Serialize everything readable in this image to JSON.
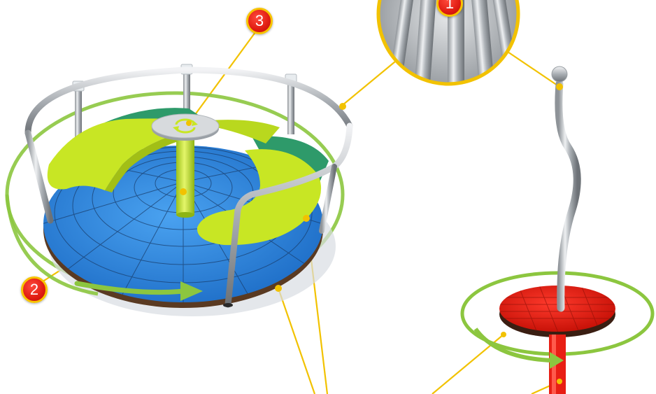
{
  "callouts": {
    "badge_1": "1",
    "badge_2": "2",
    "badge_3": "3"
  },
  "colors": {
    "callout_badge": "#e01c12",
    "callout_ring": "#f7c400",
    "leader_line": "#f2c200",
    "seat_lime": "#c8e624",
    "seat_green": "#2e9a6a",
    "floor_blue": "#2f86e0",
    "spinner_red": "#e81e14",
    "rotation_arrow": "#8cc63f",
    "rail_steel": "#b8bcc0"
  },
  "icons": {
    "center_cap": "rotation-arrows-icon",
    "direction": "arrow-right-icon"
  }
}
